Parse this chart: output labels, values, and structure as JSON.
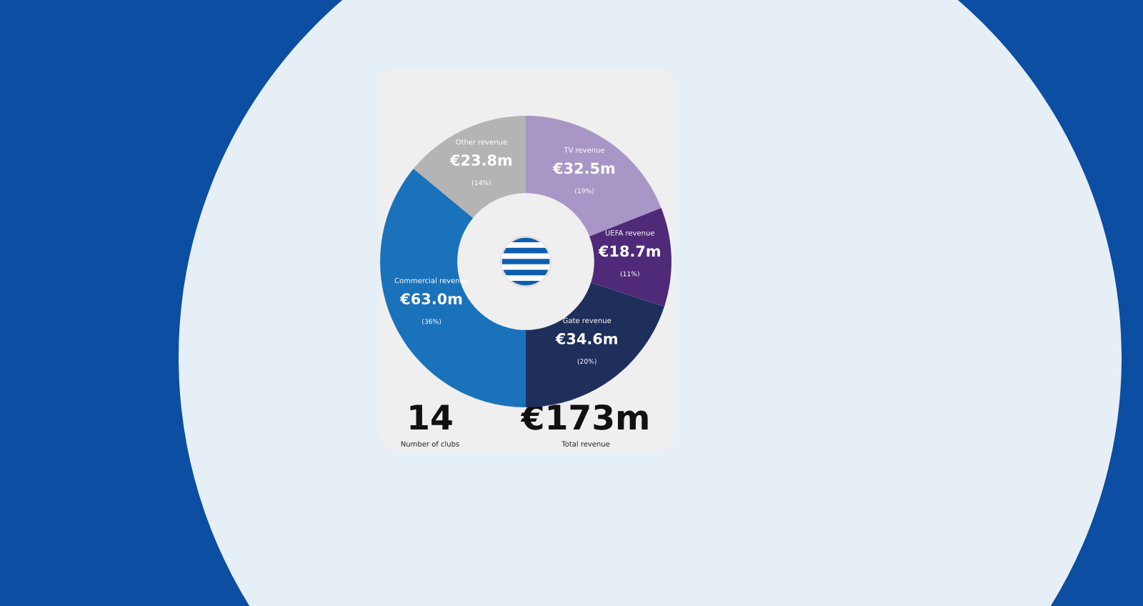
{
  "chart_data": {
    "type": "donut",
    "categories": [
      "TV revenue",
      "UEFA revenue",
      "Gate revenue",
      "Commercial revenue",
      "Other revenue"
    ],
    "values": [
      19,
      11,
      20,
      36,
      14
    ],
    "value_labels": [
      "€32.5m\n(19%)",
      "€18.7m\n(11%)",
      "€34.6m\n(20%)",
      "€63.0m\n(36%)",
      "€23.8m\n(14%)"
    ],
    "colors": [
      "#a897c6",
      "#4f2a78",
      "#1f2f5c",
      "#1a72bb",
      "#b4b4b4"
    ],
    "annotations": [
      {
        "text": "14"
      },
      {
        "text": "Number of clubs"
      },
      {
        "text": "€173m"
      },
      {
        "text": "Total revenue"
      }
    ]
  }
}
